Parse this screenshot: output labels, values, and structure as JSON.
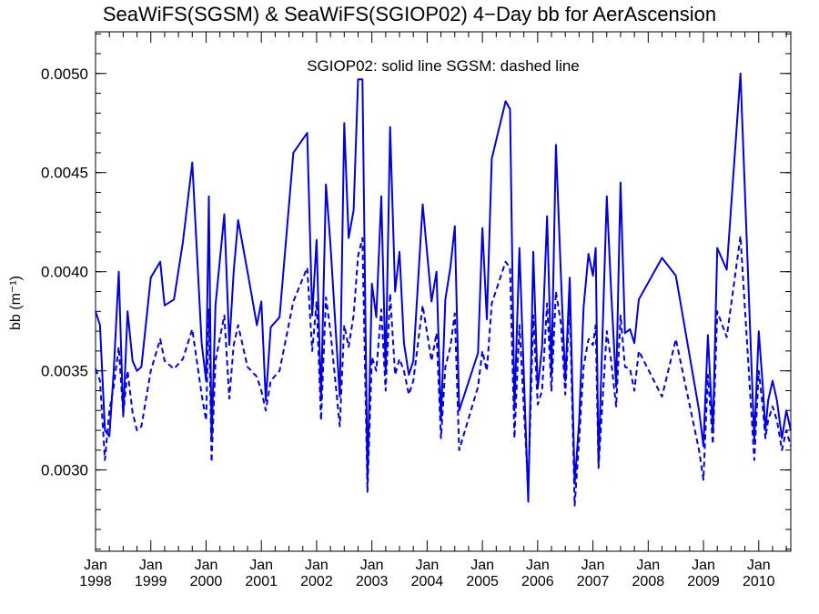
{
  "title": "SeaWiFS(SGSM) & SeaWiFS(SGIOP02) 4−Day bb for AerAscension",
  "annotation": "SGIOP02: solid line   SGSM: dashed line",
  "chart_data": {
    "type": "line",
    "title": "SeaWiFS(SGSM) & SeaWiFS(SGIOP02) 4−Day bb for AerAscension",
    "xlabel": "",
    "ylabel": "bb (m⁻¹)",
    "xlim": [
      1998.0,
      2010.58
    ],
    "ylim": [
      0.00259,
      0.00521
    ],
    "y_ticks": [
      "0.0030",
      "0.0035",
      "0.0040",
      "0.0045",
      "0.0050"
    ],
    "x_ticks": [
      {
        "month": "Jan",
        "year": "1998"
      },
      {
        "month": "Jan",
        "year": "1999"
      },
      {
        "month": "Jan",
        "year": "2000"
      },
      {
        "month": "Jan",
        "year": "2001"
      },
      {
        "month": "Jan",
        "year": "2002"
      },
      {
        "month": "Jan",
        "year": "2003"
      },
      {
        "month": "Jan",
        "year": "2004"
      },
      {
        "month": "Jan",
        "year": "2005"
      },
      {
        "month": "Jan",
        "year": "2006"
      },
      {
        "month": "Jan",
        "year": "2007"
      },
      {
        "month": "Jan",
        "year": "2008"
      },
      {
        "month": "Jan",
        "year": "2009"
      },
      {
        "month": "Jan",
        "year": "2010"
      }
    ],
    "grid": false,
    "color": "#0000dd",
    "series": [
      {
        "style": "solid",
        "x": [
          1998.0,
          1998.08,
          1998.17,
          1998.25,
          1998.33,
          1998.42,
          1998.5,
          1998.58,
          1998.67,
          1998.75,
          1998.83,
          1999.0,
          1999.17,
          1999.25,
          1999.42,
          1999.58,
          1999.75,
          1999.92,
          2000.0,
          2000.05,
          2000.1,
          2000.17,
          2000.33,
          2000.42,
          2000.5,
          2000.58,
          2000.75,
          2000.92,
          2001.0,
          2001.08,
          2001.17,
          2001.33,
          2001.58,
          2001.83,
          2001.92,
          2002.0,
          2002.08,
          2002.17,
          2002.25,
          2002.42,
          2002.5,
          2002.58,
          2002.67,
          2002.75,
          2002.83,
          2002.92,
          2003.0,
          2003.08,
          2003.17,
          2003.25,
          2003.33,
          2003.42,
          2003.5,
          2003.58,
          2003.67,
          2003.75,
          2003.92,
          2004.08,
          2004.17,
          2004.25,
          2004.33,
          2004.42,
          2004.5,
          2004.58,
          2004.92,
          2005.0,
          2005.08,
          2005.17,
          2005.42,
          2005.5,
          2005.58,
          2005.67,
          2005.83,
          2005.92,
          2006.0,
          2006.08,
          2006.17,
          2006.25,
          2006.33,
          2006.42,
          2006.5,
          2006.58,
          2006.67,
          2006.75,
          2006.83,
          2006.92,
          2007.0,
          2007.05,
          2007.1,
          2007.25,
          2007.33,
          2007.42,
          2007.5,
          2007.58,
          2007.67,
          2007.75,
          2007.83,
          2008.25,
          2008.5,
          2008.92,
          2009.0,
          2009.08,
          2009.17,
          2009.25,
          2009.42,
          2009.67,
          2009.92,
          2010.0,
          2010.08,
          2010.12,
          2010.17,
          2010.25,
          2010.33,
          2010.42,
          2010.5,
          2010.58
        ],
        "values": [
          0.0038,
          0.00373,
          0.0032,
          0.00317,
          0.0035,
          0.004,
          0.00327,
          0.0038,
          0.00355,
          0.0035,
          0.00352,
          0.00397,
          0.00405,
          0.00383,
          0.00386,
          0.00415,
          0.00455,
          0.00364,
          0.00345,
          0.00438,
          0.00315,
          0.00383,
          0.00429,
          0.00363,
          0.004,
          0.00426,
          0.004,
          0.00373,
          0.00385,
          0.00335,
          0.00372,
          0.00377,
          0.0046,
          0.0047,
          0.00378,
          0.00416,
          0.00335,
          0.00444,
          0.00414,
          0.00337,
          0.00475,
          0.00417,
          0.00431,
          0.00497,
          0.00497,
          0.00295,
          0.00394,
          0.00377,
          0.00438,
          0.00349,
          0.00473,
          0.0039,
          0.0041,
          0.00364,
          0.00348,
          0.00355,
          0.00434,
          0.00385,
          0.004,
          0.00325,
          0.00386,
          0.00402,
          0.00423,
          0.0033,
          0.00359,
          0.00422,
          0.00376,
          0.00457,
          0.00486,
          0.00482,
          0.0033,
          0.00412,
          0.00284,
          0.0041,
          0.00341,
          0.00362,
          0.00428,
          0.00348,
          0.00464,
          0.00398,
          0.00345,
          0.00397,
          0.00293,
          0.00324,
          0.00382,
          0.00409,
          0.00398,
          0.00412,
          0.00303,
          0.00438,
          0.0039,
          0.00342,
          0.00445,
          0.00369,
          0.00371,
          0.00364,
          0.00386,
          0.00407,
          0.00398,
          0.0033,
          0.00312,
          0.00368,
          0.00319,
          0.00412,
          0.00401,
          0.005,
          0.00315,
          0.0037,
          0.0034,
          0.0032,
          0.00335,
          0.00345,
          0.00335,
          0.00316,
          0.0033,
          0.0032
        ],
        "_note": "placeholder"
      },
      {
        "style": "dashed",
        "x": [
          1998.0,
          1998.08,
          1998.17,
          1998.25,
          1998.33,
          1998.42,
          1998.5,
          1998.58,
          1998.67,
          1998.75,
          1998.83,
          1999.0,
          1999.17,
          1999.25,
          1999.42,
          1999.58,
          1999.75,
          1999.92,
          2000.0,
          2000.05,
          2000.1,
          2000.17,
          2000.33,
          2000.42,
          2000.5,
          2000.58,
          2000.75,
          2000.92,
          2001.0,
          2001.08,
          2001.17,
          2001.33,
          2001.58,
          2001.83,
          2001.92,
          2002.0,
          2002.08,
          2002.17,
          2002.25,
          2002.42,
          2002.5,
          2002.58,
          2002.67,
          2002.75,
          2002.83,
          2002.92,
          2003.0,
          2003.08,
          2003.17,
          2003.25,
          2003.33,
          2003.42,
          2003.5,
          2003.58,
          2003.67,
          2003.75,
          2003.92,
          2004.08,
          2004.17,
          2004.25,
          2004.33,
          2004.42,
          2004.5,
          2004.58,
          2004.92,
          2005.0,
          2005.08,
          2005.17,
          2005.42,
          2005.5,
          2005.58,
          2005.67,
          2005.83,
          2005.92,
          2006.0,
          2006.08,
          2006.17,
          2006.25,
          2006.33,
          2006.42,
          2006.5,
          2006.58,
          2006.67,
          2006.75,
          2006.83,
          2006.92,
          2007.0,
          2007.05,
          2007.1,
          2007.25,
          2007.33,
          2007.42,
          2007.5,
          2007.58,
          2007.67,
          2007.75,
          2007.83,
          2008.25,
          2008.5,
          2008.92,
          2009.0,
          2009.08,
          2009.17,
          2009.25,
          2009.42,
          2009.67,
          2009.92,
          2010.0,
          2010.08,
          2010.12,
          2010.17,
          2010.25,
          2010.33,
          2010.42,
          2010.5,
          2010.58
        ],
        "values": [
          0.00351,
          0.00345,
          0.00305,
          0.0033,
          0.00342,
          0.00362,
          0.00328,
          0.0035,
          0.00329,
          0.0032,
          0.00322,
          0.0035,
          0.00366,
          0.00355,
          0.00351,
          0.00356,
          0.00371,
          0.00338,
          0.00325,
          0.00381,
          0.00304,
          0.00355,
          0.00378,
          0.00336,
          0.00363,
          0.00373,
          0.00352,
          0.00347,
          0.0034,
          0.0033,
          0.00345,
          0.0035,
          0.00385,
          0.00402,
          0.0036,
          0.00385,
          0.00325,
          0.00387,
          0.0037,
          0.00322,
          0.00373,
          0.00362,
          0.00378,
          0.00408,
          0.00417,
          0.00289,
          0.00357,
          0.0035,
          0.00381,
          0.0034,
          0.00389,
          0.00348,
          0.00356,
          0.0035,
          0.00338,
          0.00345,
          0.00383,
          0.00355,
          0.00369,
          0.00316,
          0.00352,
          0.00362,
          0.00379,
          0.0031,
          0.00342,
          0.0036,
          0.0035,
          0.00384,
          0.00405,
          0.00402,
          0.00316,
          0.00373,
          0.0029,
          0.00378,
          0.00333,
          0.0034,
          0.00384,
          0.0034,
          0.0039,
          0.00374,
          0.00338,
          0.00385,
          0.00282,
          0.00315,
          0.00352,
          0.00366,
          0.00363,
          0.00373,
          0.00301,
          0.0037,
          0.00355,
          0.00332,
          0.00378,
          0.00352,
          0.00351,
          0.0034,
          0.0036,
          0.00337,
          0.00366,
          0.0031,
          0.00295,
          0.00348,
          0.00313,
          0.0038,
          0.00367,
          0.00418,
          0.00305,
          0.0035,
          0.0033,
          0.00316,
          0.00325,
          0.00332,
          0.00325,
          0.0031,
          0.0032,
          0.00312
        ]
      }
    ]
  }
}
